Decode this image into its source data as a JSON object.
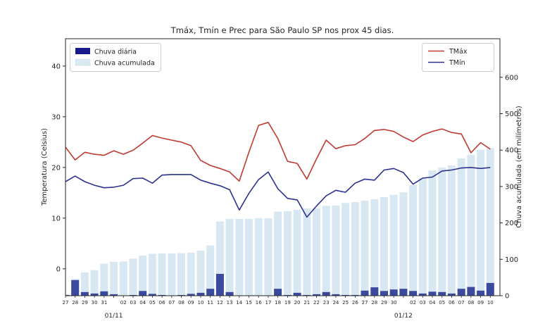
{
  "chart_data": {
    "type": "bar+line",
    "title": "Tmáx, Tmín e Prec para São Paulo SP nos prox 45 dias.",
    "grid": false,
    "x_tick_labels": [
      "27",
      "28",
      "29",
      "30",
      "31",
      "",
      "02",
      "03",
      "04",
      "05",
      "06",
      "07",
      "08",
      "09",
      "10",
      "11",
      "12",
      "13",
      "14",
      "15",
      "16",
      "17",
      "18",
      "19",
      "20",
      "21",
      "22",
      "23",
      "24",
      "25",
      "26",
      "27",
      "28",
      "29",
      "30",
      "",
      "02",
      "03",
      "04",
      "05",
      "06",
      "07",
      "08",
      "09",
      "10"
    ],
    "x_major_labels": [
      {
        "index": 5,
        "label": "01/11"
      },
      {
        "index": 35,
        "label": "01/12"
      }
    ],
    "left_axis": {
      "label": "Temperatura (Celsius)",
      "ticks": [
        0,
        10,
        20,
        30,
        40
      ],
      "ylim": [
        -5.3,
        45.4
      ]
    },
    "right_axis": {
      "label": "Chuva acumulada (em milímetros)",
      "ticks": [
        0,
        100,
        200,
        300,
        400,
        500,
        600
      ],
      "ylim": [
        0,
        706
      ]
    },
    "series": [
      {
        "name": "Chuva acumulada",
        "type": "bar",
        "axis": "right",
        "color": "#d8e8f2",
        "values": [
          3,
          46,
          64,
          70,
          88,
          93,
          94,
          102,
          110,
          115,
          116,
          116,
          117,
          118,
          124,
          138,
          204,
          211,
          211,
          211,
          213,
          213,
          231,
          232,
          236,
          240,
          240,
          247,
          248,
          255,
          257,
          261,
          265,
          271,
          277,
          284,
          304,
          323,
          344,
          352,
          358,
          377,
          387,
          401,
          405
        ]
      },
      {
        "name": "Chuva diária",
        "type": "bar",
        "axis": "right",
        "color": "#3a4a9f",
        "values": [
          2,
          43,
          10,
          6,
          12,
          4,
          1,
          2,
          13,
          5,
          2,
          1,
          2,
          5,
          8,
          19,
          60,
          10,
          1,
          1,
          1,
          1,
          19,
          2,
          8,
          2,
          4,
          10,
          4,
          2,
          2,
          14,
          23,
          13,
          17,
          19,
          13,
          6,
          11,
          10,
          6,
          19,
          24,
          14,
          35
        ]
      },
      {
        "name": "TMáx",
        "type": "line",
        "axis": "left",
        "color": "#c13a31",
        "values": [
          24.0,
          21.5,
          23.0,
          22.6,
          22.4,
          23.3,
          22.6,
          23.4,
          24.8,
          26.3,
          25.8,
          25.4,
          25.0,
          24.3,
          21.4,
          20.4,
          19.8,
          19.1,
          17.3,
          23.0,
          28.3,
          28.9,
          25.7,
          21.2,
          20.8,
          17.7,
          21.7,
          25.4,
          23.7,
          24.3,
          24.5,
          25.7,
          27.3,
          27.5,
          27.1,
          26.0,
          25.1,
          26.4,
          27.1,
          27.6,
          26.9,
          26.6,
          22.9,
          24.9,
          23.6
        ]
      },
      {
        "name": "TMín",
        "type": "line",
        "axis": "left",
        "color": "#2b318f",
        "values": [
          17.2,
          18.3,
          17.2,
          16.5,
          16.0,
          16.1,
          16.5,
          17.8,
          17.9,
          16.9,
          18.5,
          18.6,
          18.6,
          18.6,
          17.5,
          16.9,
          16.4,
          15.6,
          11.6,
          14.9,
          17.6,
          19.1,
          15.8,
          13.9,
          13.6,
          10.2,
          12.4,
          14.4,
          15.5,
          15.1,
          16.9,
          17.7,
          17.5,
          19.5,
          19.8,
          19.0,
          16.7,
          17.9,
          18.1,
          19.3,
          19.5,
          19.9,
          20.0,
          19.8,
          20.0
        ]
      }
    ]
  },
  "legends": {
    "rain": {
      "items": [
        {
          "label": "Chuva diária",
          "color": "#1a1a8f"
        },
        {
          "label": "Chuva acumulada",
          "color": "#dbe9f2"
        }
      ]
    },
    "temp": {
      "items": [
        {
          "label": "TMáx",
          "color": "#c13a31"
        },
        {
          "label": "TMín",
          "color": "#2b318f"
        }
      ]
    }
  }
}
